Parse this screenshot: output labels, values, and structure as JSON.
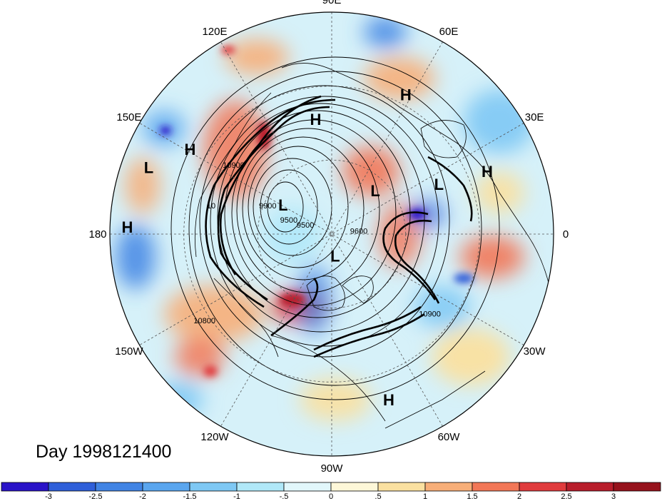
{
  "title": "Day 1998121400",
  "longitude_labels": [
    {
      "text": "90E",
      "lon": 90
    },
    {
      "text": "60E",
      "lon": 60
    },
    {
      "text": "30E",
      "lon": 30
    },
    {
      "text": "0",
      "lon": 0
    },
    {
      "text": "30W",
      "lon": -30
    },
    {
      "text": "60W",
      "lon": -60
    },
    {
      "text": "90W",
      "lon": -90
    },
    {
      "text": "120W",
      "lon": -120
    },
    {
      "text": "150W",
      "lon": -150
    },
    {
      "text": "180",
      "lon": 180
    },
    {
      "text": "150E",
      "lon": 150
    },
    {
      "text": "120E",
      "lon": 120
    }
  ],
  "pressure_centers": [
    {
      "text": "H",
      "kind": "high",
      "lon": 98,
      "lat": 43
    },
    {
      "text": "H",
      "kind": "high",
      "lon": 62,
      "lat": 26
    },
    {
      "text": "H",
      "kind": "high",
      "lon": 22,
      "lat": 22
    },
    {
      "text": "H",
      "kind": "high",
      "lon": 149,
      "lat": 23
    },
    {
      "text": "H",
      "kind": "high",
      "lon": 178,
      "lat": 7
    },
    {
      "text": "H",
      "kind": "high",
      "lon": -71,
      "lat": 19
    },
    {
      "text": "L",
      "kind": "low",
      "lon": 160,
      "lat": 11
    },
    {
      "text": "L",
      "kind": "low",
      "lon": 45,
      "lat": 65
    },
    {
      "text": "L",
      "kind": "low",
      "lon": 25,
      "lat": 42
    },
    {
      "text": "L",
      "kind": "low",
      "lon": 149,
      "lat": 67
    },
    {
      "text": "L",
      "kind": "low",
      "lon": -81,
      "lat": 81
    }
  ],
  "contour_labels": [
    {
      "text": "10900",
      "lon": 146,
      "lat": 42
    },
    {
      "text": "9900",
      "lon": 158,
      "lat": 62
    },
    {
      "text": "9500",
      "lon": 165,
      "lat": 72
    },
    {
      "text": "9500",
      "lon": 166,
      "lat": 79
    },
    {
      "text": "9600",
      "lon": 1,
      "lat": 79
    },
    {
      "text": "10900",
      "lon": -40,
      "lat": 38
    },
    {
      "text": "10800",
      "lon": -145,
      "lat": 27
    },
    {
      "text": "10",
      "lon": 168,
      "lat": 40
    }
  ],
  "colorbar": {
    "tick_labels": [
      "-3",
      "-2.5",
      "-2",
      "-1.5",
      "-1",
      "-.5",
      "0",
      ".5",
      "1",
      "1.5",
      "2",
      "2.5",
      "3"
    ],
    "colors": [
      "#2a13c8",
      "#2f5fd9",
      "#4184e4",
      "#5aa6ef",
      "#7ec8f4",
      "#b0e8f8",
      "#e2f7fb",
      "#fdf7d8",
      "#fae0a0",
      "#f7ae78",
      "#f27757",
      "#e03b3d",
      "#b81d2b",
      "#96121c"
    ]
  },
  "map_colors": {
    "ocean_base": "#d6f1f9",
    "warm_anomaly": "#ee6a4e",
    "cold_anomaly": "#3f7ae0",
    "contour": "#000000",
    "grid": "#555555"
  }
}
